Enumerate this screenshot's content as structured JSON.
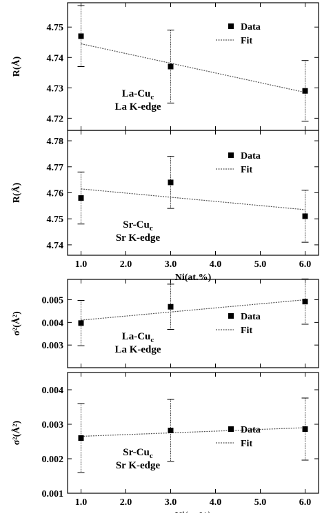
{
  "chart_data": [
    {
      "type": "scatter",
      "ylabel": "R(Å)",
      "xlabel": "",
      "xlim": [
        0.7,
        6.3
      ],
      "ylim": [
        4.716,
        4.758
      ],
      "yticks": [
        4.72,
        4.73,
        4.74,
        4.75
      ],
      "ytick_labels": [
        "4.72",
        "4.73",
        "4.74",
        "4.75"
      ],
      "xticks": [
        1,
        2,
        3,
        4,
        5,
        6
      ],
      "xtick_labels": [],
      "legend": {
        "position": "top-right",
        "data_label": "Data",
        "fit_label": "Fit"
      },
      "annotation": {
        "line1_main": "La-Cu",
        "line1_sub": "c",
        "line2": "La K-edge"
      },
      "series": [
        {
          "name": "Data",
          "x": [
            1.0,
            3.0,
            6.0
          ],
          "y": [
            4.747,
            4.737,
            4.729
          ],
          "yerr": [
            0.01,
            0.012,
            0.01
          ]
        },
        {
          "name": "Fit",
          "x": [
            1.0,
            6.0
          ],
          "y": [
            4.7445,
            4.7285
          ]
        }
      ]
    },
    {
      "type": "scatter",
      "ylabel": "R(Å)",
      "xlabel": "Ni(at.%)",
      "xlim": [
        0.7,
        6.3
      ],
      "ylim": [
        4.736,
        4.784
      ],
      "yticks": [
        4.74,
        4.75,
        4.76,
        4.77,
        4.78
      ],
      "ytick_labels": [
        "4.74",
        "4.75",
        "4.76",
        "4.77",
        "4.78"
      ],
      "xticks": [
        1,
        2,
        3,
        4,
        5,
        6
      ],
      "xtick_labels": [
        "1.0",
        "2.0",
        "3.0",
        "4.0",
        "5.0",
        "6.0"
      ],
      "legend": {
        "position": "top-right",
        "data_label": "Data",
        "fit_label": "Fit"
      },
      "annotation": {
        "line1_main": "Sr-Cu",
        "line1_sub": "c",
        "line2": "Sr K-edge"
      },
      "series": [
        {
          "name": "Data",
          "x": [
            1.0,
            3.0,
            6.0
          ],
          "y": [
            4.758,
            4.764,
            4.751
          ],
          "yerr": [
            0.01,
            0.01,
            0.01
          ]
        },
        {
          "name": "Fit",
          "x": [
            1.0,
            6.0
          ],
          "y": [
            4.7615,
            4.7535
          ]
        }
      ]
    },
    {
      "type": "scatter",
      "ylabel": "σ²(Å²)",
      "xlabel": "",
      "xlim": [
        0.7,
        6.3
      ],
      "ylim": [
        0.002,
        0.0059
      ],
      "yticks": [
        0.003,
        0.004,
        0.005
      ],
      "ytick_labels": [
        "0.003",
        "0.004",
        "0.005"
      ],
      "xticks": [
        1,
        2,
        3,
        4,
        5,
        6
      ],
      "xtick_labels": [],
      "legend": {
        "position": "right",
        "data_label": "Data",
        "fit_label": "Fit"
      },
      "annotation": {
        "line1_main": "La-Cu",
        "line1_sub": "c",
        "line2": "La K-edge"
      },
      "series": [
        {
          "name": "Data",
          "x": [
            1.0,
            3.0,
            6.0
          ],
          "y": [
            0.00397,
            0.00469,
            0.00492
          ],
          "yerr": [
            0.001,
            0.001,
            0.001
          ]
        },
        {
          "name": "Fit",
          "x": [
            1.0,
            6.0
          ],
          "y": [
            0.0041,
            0.005
          ]
        }
      ]
    },
    {
      "type": "scatter",
      "ylabel": "σ²(Å²)",
      "xlabel": "Ni(at.%)",
      "xlim": [
        0.7,
        6.3
      ],
      "ylim": [
        0.001,
        0.0045
      ],
      "yticks": [
        0.001,
        0.002,
        0.003,
        0.004
      ],
      "ytick_labels": [
        "0.001",
        "0.002",
        "0.003",
        "0.004"
      ],
      "xticks": [
        1,
        2,
        3,
        4,
        5,
        6
      ],
      "xtick_labels": [
        "1.0",
        "2.0",
        "3.0",
        "4.0",
        "5.0",
        "6.0"
      ],
      "legend": {
        "position": "bottom-right",
        "data_label": "Data",
        "fit_label": "Fit"
      },
      "annotation": {
        "line1_main": "Sr-Cu",
        "line1_sub": "c",
        "line2": "Sr K-edge"
      },
      "series": [
        {
          "name": "Data",
          "x": [
            1.0,
            3.0,
            6.0
          ],
          "y": [
            0.0026,
            0.00282,
            0.00286
          ],
          "yerr": [
            0.001,
            0.0009,
            0.0009
          ]
        },
        {
          "name": "Fit",
          "x": [
            1.0,
            6.0
          ],
          "y": [
            0.00265,
            0.0029
          ]
        }
      ]
    }
  ]
}
